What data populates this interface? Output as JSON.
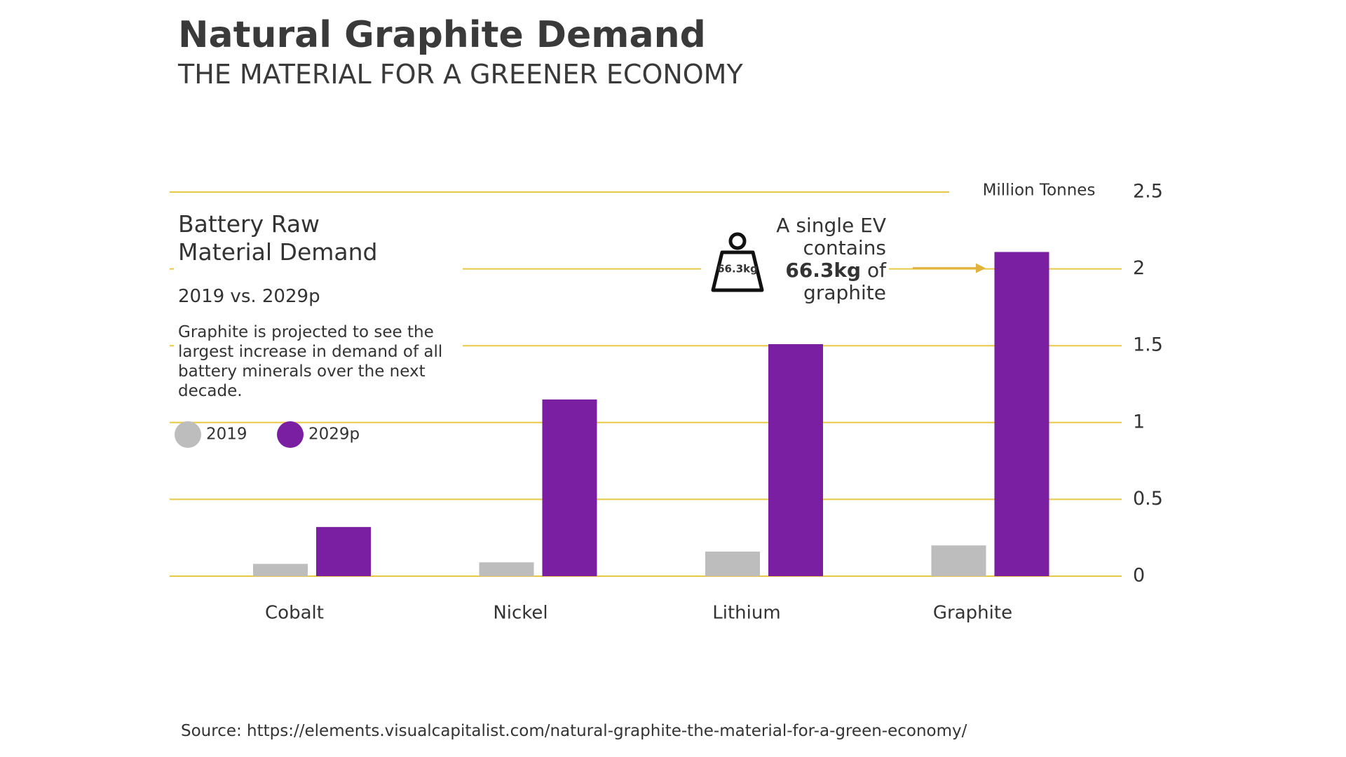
{
  "chart_data": {
    "type": "bar",
    "title": "Natural Graphite Demand",
    "subtitle": "THE MATERIAL FOR A GREENER ECONOMY",
    "y_label": "Million Tonnes",
    "panel_title": "Battery Raw Material Demand",
    "period": "2019 vs. 2029p",
    "description": "Graphite is projected to see the largest increase in demand of all battery minerals over the next decade.",
    "annotation": {
      "before": "A single EV contains",
      "bold": "66.3kg",
      "after": "of graphite",
      "icon_label": "66.3kg"
    },
    "categories": [
      "Cobalt",
      "Nickel",
      "Lithium",
      "Graphite"
    ],
    "series": [
      {
        "name": "2019",
        "color": "#bdbdbd",
        "values": [
          0.08,
          0.09,
          0.16,
          0.2
        ]
      },
      {
        "name": "2029p",
        "color": "#7b1fa2",
        "values": [
          0.32,
          1.15,
          1.51,
          2.11
        ]
      }
    ],
    "ylim": [
      0,
      2.5
    ],
    "yticks": [
      0,
      0.5,
      1,
      1.5,
      2,
      2.5
    ],
    "grid": true,
    "grid_color": "#e9c845",
    "source": "Source: https://elements.visualcapitalist.com/natural-graphite-the-material-for-a-green-economy/"
  }
}
